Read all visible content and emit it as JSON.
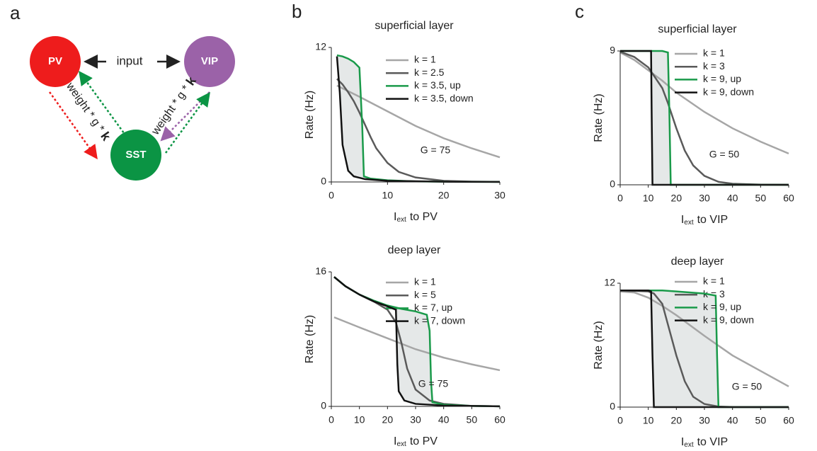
{
  "panel_labels": [
    "a",
    "b",
    "c"
  ],
  "diagram": {
    "nodes": [
      {
        "label": "PV",
        "color": "#ee1c1c"
      },
      {
        "label": "VIP",
        "color": "#9b62a8"
      },
      {
        "label": "SST",
        "color": "#0b9444"
      }
    ],
    "input_label": "input",
    "weight_label": {
      "text": "weight * g * ",
      "bold": "k"
    }
  },
  "chart_data": [
    {
      "type": "line",
      "title": "superficial layer",
      "ylabel": "Rate (Hz)",
      "xlabel": {
        "main": "I",
        "sub": "ext",
        "rest": "to PV"
      },
      "annotation": "G = 75",
      "xlim": [
        0,
        30
      ],
      "ylim": [
        0,
        12
      ],
      "xticks": [
        0,
        10,
        20,
        30
      ],
      "yticks": [
        0,
        12
      ],
      "fill_between": [
        2,
        3
      ],
      "series": [
        {
          "name": "k = 1",
          "color": "#a6a6a6",
          "x": [
            1,
            5,
            10,
            15,
            20,
            25,
            30
          ],
          "values": [
            8.6,
            7.6,
            6.3,
            5.0,
            3.9,
            3.0,
            2.2
          ]
        },
        {
          "name": "k = 2.5",
          "color": "#5a5a5a",
          "x": [
            1,
            2,
            3,
            4,
            5,
            6,
            7,
            8,
            10,
            12,
            15,
            20,
            25,
            30
          ],
          "values": [
            9.2,
            8.7,
            8.0,
            7.2,
            6.2,
            5.1,
            4.0,
            3.0,
            1.7,
            0.9,
            0.4,
            0.1,
            0.03,
            0.01
          ]
        },
        {
          "name": "k = 3.5, up",
          "color": "#1a9a4a",
          "x": [
            1,
            2,
            3,
            4,
            5,
            5.5,
            5.8,
            7,
            10,
            15,
            20,
            30
          ],
          "values": [
            11.3,
            11.2,
            11.0,
            10.7,
            10.2,
            5,
            0.5,
            0.3,
            0.15,
            0.05,
            0.02,
            0.01
          ]
        },
        {
          "name": "k = 3.5, down",
          "color": "#111111",
          "x": [
            1,
            1.5,
            2,
            3,
            4,
            6,
            10,
            20,
            30
          ],
          "values": [
            11.2,
            8,
            3.3,
            1.0,
            0.5,
            0.25,
            0.1,
            0.02,
            0.01
          ]
        }
      ]
    },
    {
      "type": "line",
      "title": "deep layer",
      "ylabel": "Rate (Hz)",
      "xlabel": {
        "main": "I",
        "sub": "ext",
        "rest": "to PV"
      },
      "annotation": "G = 75",
      "xlim": [
        0,
        60
      ],
      "ylim": [
        0,
        16
      ],
      "xticks": [
        0,
        10,
        20,
        30,
        40,
        50,
        60
      ],
      "yticks": [
        0,
        16
      ],
      "fill_between": [
        2,
        3
      ],
      "series": [
        {
          "name": "k = 1",
          "color": "#a6a6a6",
          "x": [
            1,
            10,
            20,
            30,
            40,
            50,
            60
          ],
          "values": [
            10.6,
            9.4,
            8.1,
            6.8,
            5.8,
            5.0,
            4.3
          ]
        },
        {
          "name": "k = 5",
          "color": "#5a5a5a",
          "x": [
            1,
            5,
            10,
            15,
            20,
            23,
            25,
            27,
            30,
            35,
            40,
            50,
            60
          ],
          "values": [
            15.4,
            14.3,
            13.3,
            12.5,
            11.5,
            10,
            7.5,
            4.5,
            2.0,
            0.7,
            0.3,
            0.05,
            0.01
          ]
        },
        {
          "name": "k = 7, up",
          "color": "#1a9a4a",
          "x": [
            1,
            5,
            10,
            15,
            20,
            25,
            30,
            34,
            35,
            35.5,
            36,
            40,
            50,
            60
          ],
          "values": [
            15.4,
            14.3,
            13.3,
            12.6,
            12.0,
            11.6,
            11.3,
            10.9,
            9,
            3,
            0.5,
            0.2,
            0.05,
            0.01
          ]
        },
        {
          "name": "k = 7, down",
          "color": "#111111",
          "x": [
            1,
            5,
            10,
            15,
            20,
            23,
            23.5,
            24,
            26,
            30,
            40,
            60
          ],
          "values": [
            15.4,
            14.3,
            13.3,
            12.5,
            11.9,
            11.5,
            5,
            1.8,
            0.7,
            0.3,
            0.1,
            0.01
          ]
        }
      ]
    },
    {
      "type": "line",
      "title": "superficial layer",
      "ylabel": "Rate (Hz)",
      "xlabel": {
        "main": "I",
        "sub": "ext",
        "rest": "to VIP"
      },
      "annotation": "G = 50",
      "xlim": [
        0,
        60
      ],
      "ylim": [
        0,
        9
      ],
      "xticks": [
        0,
        10,
        20,
        30,
        40,
        50,
        60
      ],
      "yticks": [
        0,
        9
      ],
      "fill_between": [
        2,
        3
      ],
      "series": [
        {
          "name": "k = 1",
          "color": "#a6a6a6",
          "x": [
            0,
            5,
            10,
            15,
            20,
            30,
            40,
            50,
            60
          ],
          "values": [
            8.9,
            8.4,
            7.7,
            7.0,
            6.2,
            4.9,
            3.8,
            2.9,
            2.1
          ]
        },
        {
          "name": "k = 3",
          "color": "#5a5a5a",
          "x": [
            0,
            5,
            10,
            15,
            17,
            20,
            23,
            26,
            30,
            35,
            40,
            50,
            60
          ],
          "values": [
            8.95,
            8.6,
            7.9,
            6.5,
            5.5,
            3.8,
            2.3,
            1.3,
            0.6,
            0.2,
            0.07,
            0.01,
            0
          ]
        },
        {
          "name": "k = 9, up",
          "color": "#1a9a4a",
          "x": [
            0,
            10,
            15,
            17,
            17.5,
            18,
            60
          ],
          "values": [
            9,
            9,
            9,
            8.9,
            5,
            0,
            0
          ]
        },
        {
          "name": "k = 9, down",
          "color": "#111111",
          "x": [
            0,
            10,
            11,
            11.2,
            11.5,
            60
          ],
          "values": [
            9,
            9,
            9,
            5,
            0,
            0
          ]
        }
      ]
    },
    {
      "type": "line",
      "title": "deep layer",
      "ylabel": "Rate (Hz)",
      "xlabel": {
        "main": "I",
        "sub": "ext",
        "rest": "to VIP"
      },
      "annotation": "G = 50",
      "xlim": [
        0,
        60
      ],
      "ylim": [
        0,
        12
      ],
      "xticks": [
        0,
        10,
        20,
        30,
        40,
        50,
        60
      ],
      "yticks": [
        0,
        12
      ],
      "fill_between": [
        2,
        3
      ],
      "series": [
        {
          "name": "k = 1",
          "color": "#a6a6a6",
          "x": [
            0,
            5,
            10,
            15,
            20,
            30,
            40,
            50,
            60
          ],
          "values": [
            11.2,
            11.1,
            10.6,
            9.8,
            8.9,
            6.9,
            5.0,
            3.5,
            2.0
          ]
        },
        {
          "name": "k = 3",
          "color": "#5a5a5a",
          "x": [
            0,
            10,
            12,
            15,
            18,
            20,
            23,
            26,
            30,
            35,
            40,
            60
          ],
          "values": [
            11.3,
            11.2,
            11.0,
            10,
            7,
            5,
            2.5,
            1,
            0.3,
            0.05,
            0.01,
            0
          ]
        },
        {
          "name": "k = 9, up",
          "color": "#1a9a4a",
          "x": [
            0,
            10,
            15,
            20,
            25,
            30,
            34,
            34.5,
            35,
            60
          ],
          "values": [
            11.3,
            11.3,
            11.3,
            11.2,
            11.1,
            11.0,
            10.8,
            5,
            0,
            0
          ]
        },
        {
          "name": "k = 9, down",
          "color": "#111111",
          "x": [
            0,
            10,
            11,
            11.5,
            12,
            60
          ],
          "values": [
            11.3,
            11.3,
            11.2,
            5,
            0,
            0
          ]
        }
      ]
    }
  ]
}
